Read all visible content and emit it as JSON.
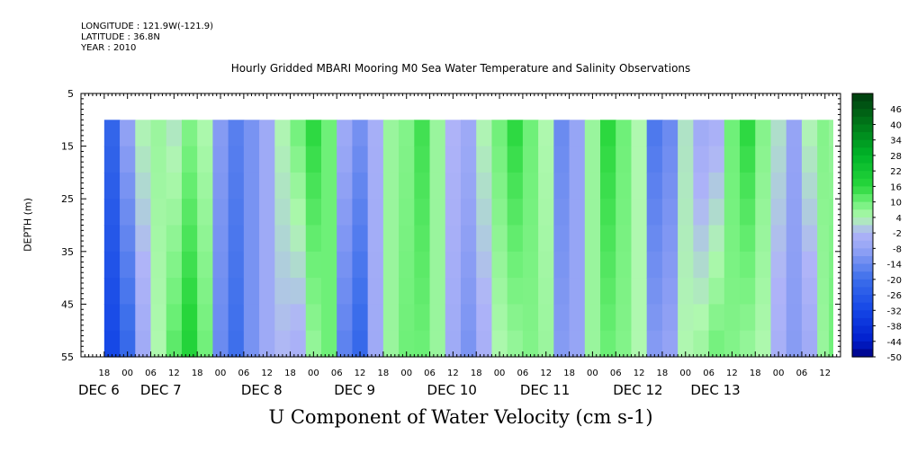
{
  "header": {
    "longitude": "LONGITUDE : 121.9W(-121.9)",
    "latitude": "LATITUDE : 36.8N",
    "year": "YEAR : 2010"
  },
  "chart_data": {
    "type": "heatmap",
    "title": "Hourly Gridded MBARI Mooring M0 Sea Water Temperature and Salinity Observations",
    "xlabel": "U Component of Water Velocity (cm s-1)",
    "ylabel": "DEPTH (m)",
    "y_range": [
      5,
      55
    ],
    "y_ticks": [
      "5",
      "15",
      "25",
      "35",
      "45",
      "55"
    ],
    "data_depth_range": [
      10,
      55
    ],
    "x_range_hours": [
      0,
      196
    ],
    "data_start_hour": 6,
    "hour_tick_labels": [
      "18",
      "00",
      "06",
      "12",
      "18",
      "00",
      "06",
      "12",
      "18",
      "00",
      "06",
      "12",
      "18",
      "00",
      "06",
      "12",
      "18",
      "00",
      "06",
      "12",
      "18",
      "00",
      "06",
      "12",
      "18",
      "00",
      "06",
      "12",
      "18",
      "00",
      "06",
      "12"
    ],
    "day_labels": [
      "DEC  6",
      "DEC  7",
      "DEC  8",
      "DEC  9",
      "DEC 10",
      "DEC 11",
      "DEC 12",
      "DEC 13"
    ],
    "colorbar_levels": [
      "46",
      "40",
      "34",
      "28",
      "22",
      "16",
      "10",
      "4",
      "-2",
      "-8",
      "-14",
      "-20",
      "-26",
      "-32",
      "-38",
      "-44",
      "-50"
    ],
    "colorbar_range": [
      -50,
      52
    ],
    "velocity_profile": [
      {
        "hour": 6,
        "surface": -22,
        "bottom": -32
      },
      {
        "hour": 10,
        "surface": -8,
        "bottom": -22
      },
      {
        "hour": 14,
        "surface": 4,
        "bottom": -6
      },
      {
        "hour": 18,
        "surface": 6,
        "bottom": 4
      },
      {
        "hour": 22,
        "surface": 2,
        "bottom": 12
      },
      {
        "hour": 26,
        "surface": 8,
        "bottom": 18
      },
      {
        "hour": 30,
        "surface": 4,
        "bottom": 10
      },
      {
        "hour": 34,
        "surface": -10,
        "bottom": -14
      },
      {
        "hour": 38,
        "surface": -16,
        "bottom": -20
      },
      {
        "hour": 42,
        "surface": -12,
        "bottom": -12
      },
      {
        "hour": 46,
        "surface": -6,
        "bottom": -6
      },
      {
        "hour": 50,
        "surface": 4,
        "bottom": -2
      },
      {
        "hour": 54,
        "surface": 10,
        "bottom": -4
      },
      {
        "hour": 58,
        "surface": 16,
        "bottom": 6
      },
      {
        "hour": 62,
        "surface": 10,
        "bottom": 10
      },
      {
        "hour": 66,
        "surface": -6,
        "bottom": -16
      },
      {
        "hour": 70,
        "surface": -12,
        "bottom": -22
      },
      {
        "hour": 74,
        "surface": -4,
        "bottom": -6
      },
      {
        "hour": 78,
        "surface": 6,
        "bottom": 6
      },
      {
        "hour": 82,
        "surface": 8,
        "bottom": 10
      },
      {
        "hour": 86,
        "surface": 14,
        "bottom": 10
      },
      {
        "hour": 90,
        "surface": 6,
        "bottom": 6
      },
      {
        "hour": 94,
        "surface": -2,
        "bottom": -6
      },
      {
        "hour": 98,
        "surface": -6,
        "bottom": -12
      },
      {
        "hour": 102,
        "surface": 4,
        "bottom": -4
      },
      {
        "hour": 106,
        "surface": 10,
        "bottom": 4
      },
      {
        "hour": 110,
        "surface": 16,
        "bottom": 6
      },
      {
        "hour": 114,
        "surface": 10,
        "bottom": 8
      },
      {
        "hour": 118,
        "surface": 4,
        "bottom": 6
      },
      {
        "hour": 122,
        "surface": -14,
        "bottom": -10
      },
      {
        "hour": 126,
        "surface": -8,
        "bottom": -8
      },
      {
        "hour": 130,
        "surface": 6,
        "bottom": 6
      },
      {
        "hour": 134,
        "surface": 16,
        "bottom": 10
      },
      {
        "hour": 138,
        "surface": 10,
        "bottom": 8
      },
      {
        "hour": 142,
        "surface": 4,
        "bottom": 4
      },
      {
        "hour": 146,
        "surface": -18,
        "bottom": -10
      },
      {
        "hour": 150,
        "surface": -14,
        "bottom": -8
      },
      {
        "hour": 154,
        "surface": 2,
        "bottom": 4
      },
      {
        "hour": 158,
        "surface": -6,
        "bottom": 6
      },
      {
        "hour": 162,
        "surface": -4,
        "bottom": 10
      },
      {
        "hour": 166,
        "surface": 10,
        "bottom": 8
      },
      {
        "hour": 170,
        "surface": 16,
        "bottom": 6
      },
      {
        "hour": 174,
        "surface": 8,
        "bottom": 4
      },
      {
        "hour": 178,
        "surface": 2,
        "bottom": -4
      },
      {
        "hour": 182,
        "surface": -8,
        "bottom": -10
      },
      {
        "hour": 186,
        "surface": 4,
        "bottom": -6
      },
      {
        "hour": 190,
        "surface": 8,
        "bottom": 6
      },
      {
        "hour": 193,
        "surface": 6,
        "bottom": 10
      }
    ]
  }
}
